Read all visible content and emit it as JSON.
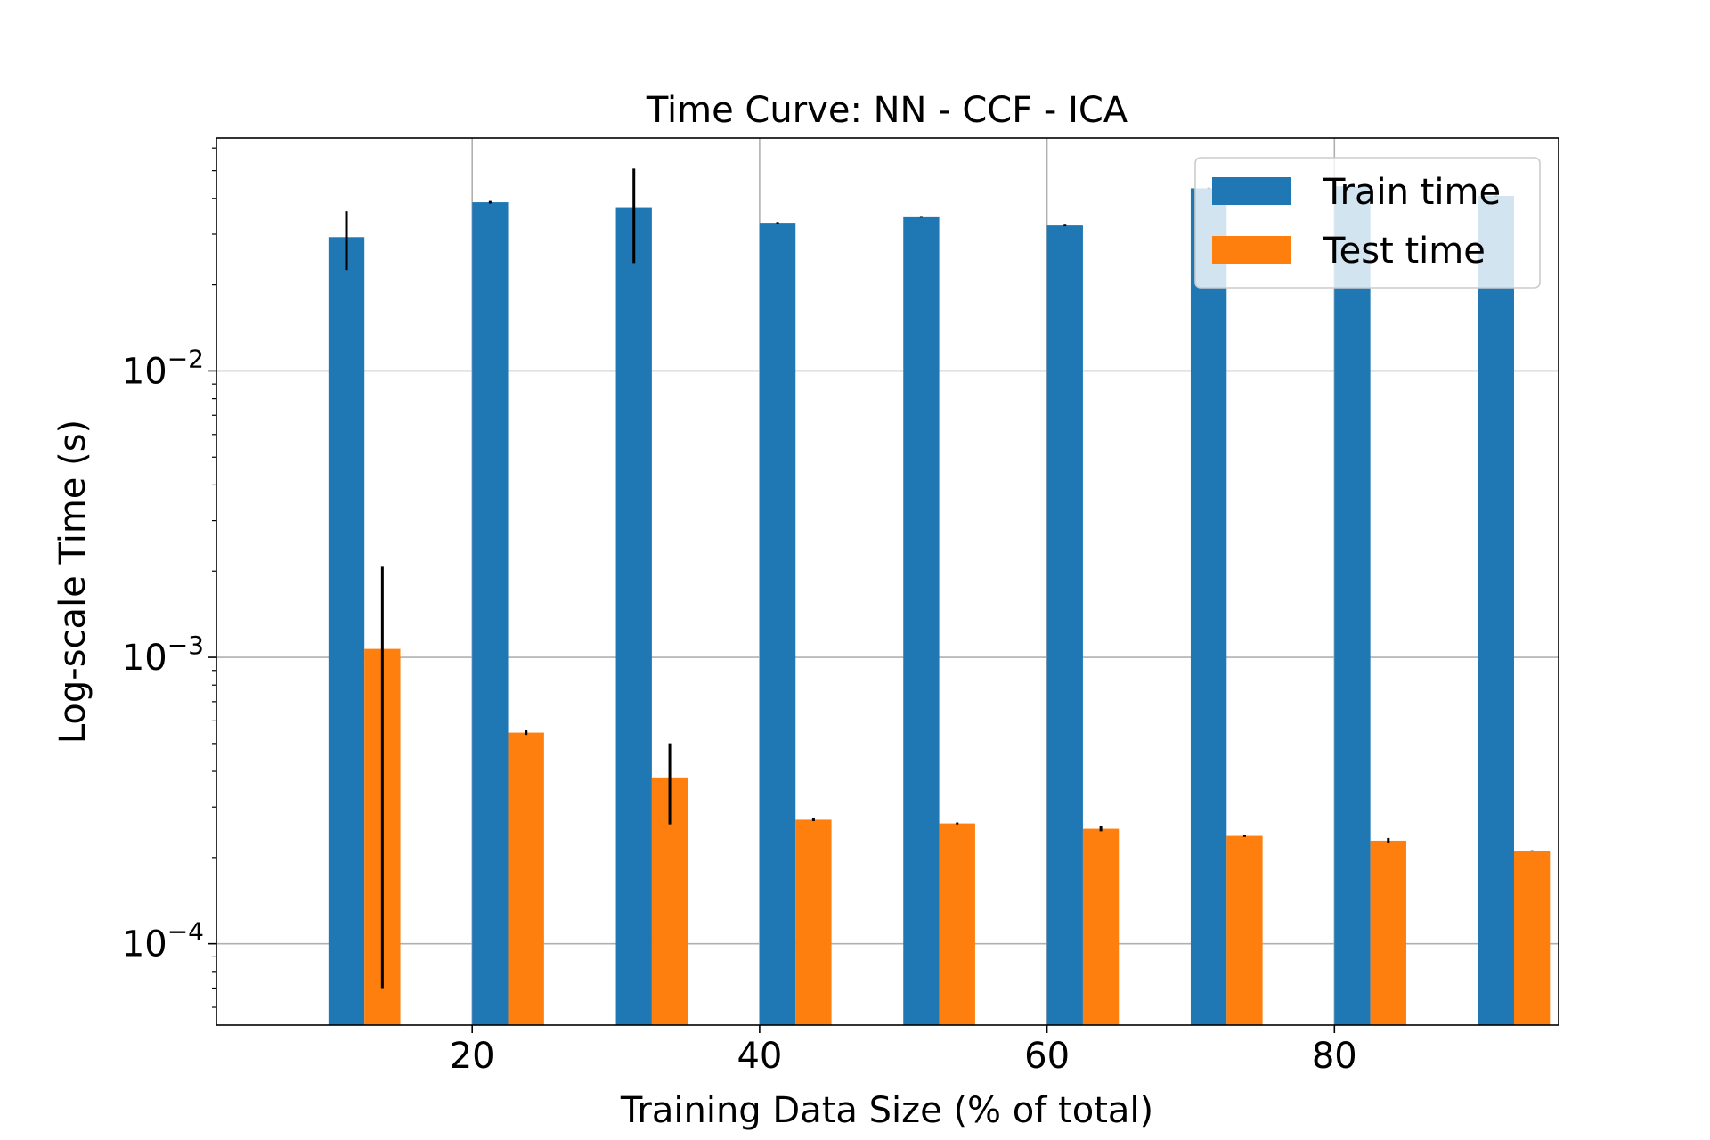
{
  "chart_data": {
    "type": "bar",
    "title": "Time Curve: NN - CCF - ICA",
    "xlabel": "Training Data Size (% of total)",
    "ylabel": "Log-scale Time (s)",
    "yscale": "log",
    "xlim": [
      2.2,
      95.6
    ],
    "ylim": [
      5.2e-05,
      0.065
    ],
    "grid": true,
    "legend_position": "top-right",
    "x_ticks": [
      20,
      40,
      60,
      80
    ],
    "x_tick_labels": [
      "20",
      "40",
      "60",
      "80"
    ],
    "y_ticks": [
      0.0001,
      0.001,
      0.01
    ],
    "y_tick_labels": [
      {
        "base": "10",
        "exp": "−4"
      },
      {
        "base": "10",
        "exp": "−3"
      },
      {
        "base": "10",
        "exp": "−2"
      }
    ],
    "categories": [
      10,
      20,
      30,
      40,
      50,
      60,
      70,
      80,
      90
    ],
    "series": [
      {
        "name": "Train time",
        "color": "#1f77b4",
        "values": [
          0.0293,
          0.0388,
          0.0373,
          0.0329,
          0.0344,
          0.0322,
          0.0434,
          0.0441,
          0.0408
        ],
        "error": [
          0.0068,
          0.0004,
          0.0135,
          0.0002,
          0.0001,
          0.0002,
          0.0003,
          0.0002,
          0.0002
        ]
      },
      {
        "name": "Test time",
        "color": "#ff7f0e",
        "values": [
          0.00107,
          0.000546,
          0.000381,
          0.000271,
          0.000263,
          0.000252,
          0.000238,
          0.000229,
          0.000211
        ],
        "error": [
          0.001,
          1e-05,
          0.00012,
          3e-06,
          2e-06,
          5e-06,
          2e-06,
          5e-06,
          1e-06
        ]
      }
    ]
  }
}
